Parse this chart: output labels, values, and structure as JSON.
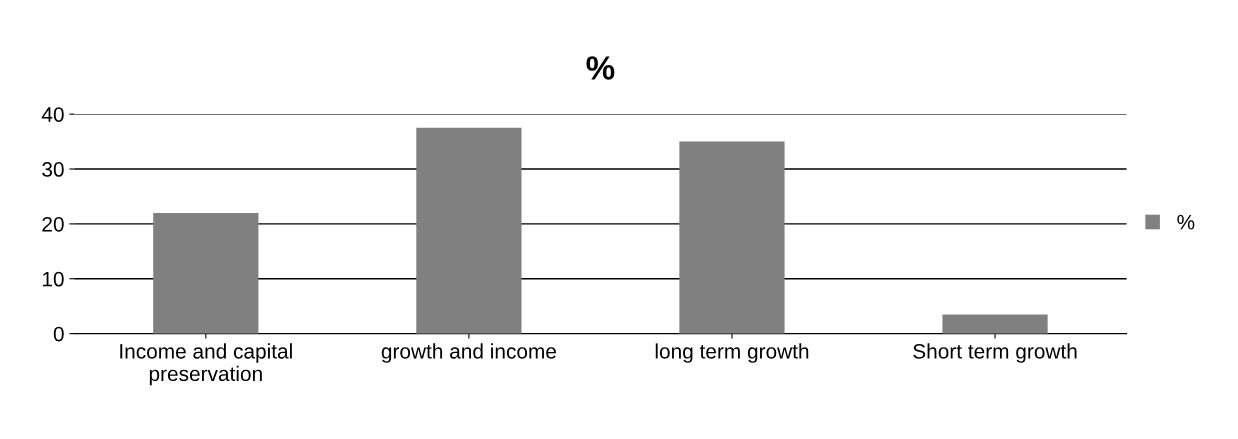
{
  "chart_data": {
    "type": "bar",
    "title": "%",
    "categories": [
      "Income and capital\npreservation",
      "growth and income",
      "long term growth",
      "Short term growth"
    ],
    "series": [
      {
        "name": "%",
        "color": "#808080",
        "values": [
          22,
          37.5,
          35,
          3.5
        ]
      }
    ],
    "ylim": [
      0,
      40
    ],
    "yticks": [
      0,
      10,
      20,
      30,
      40
    ],
    "grid": "y",
    "legend": "right"
  }
}
